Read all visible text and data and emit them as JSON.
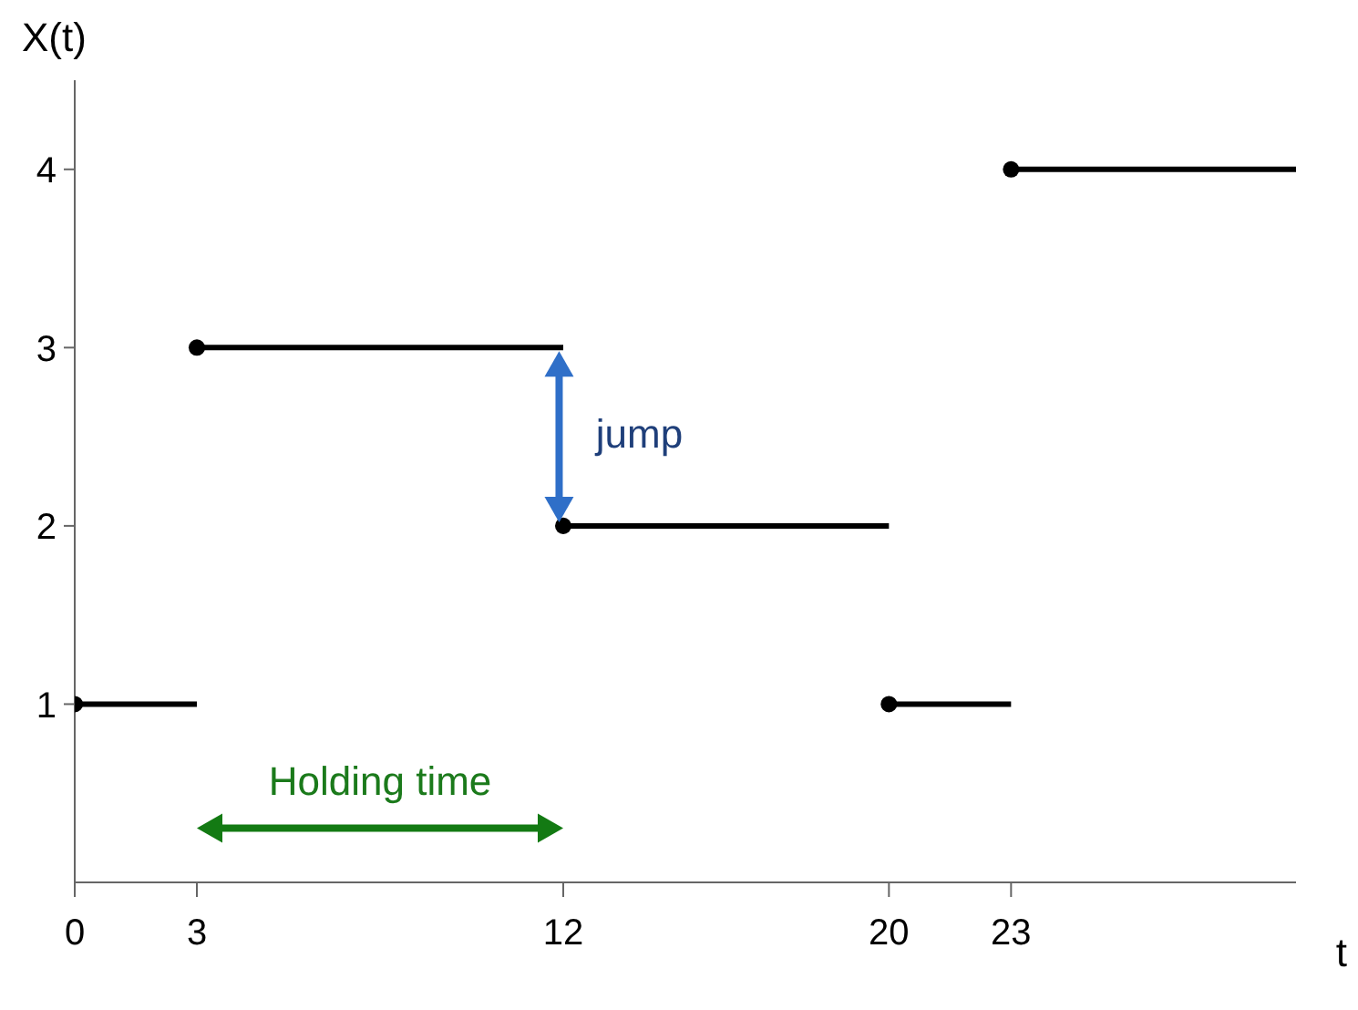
{
  "chart_data": {
    "type": "line",
    "xlabel": "t",
    "ylabel": "X(t)",
    "xlim": [
      0,
      30
    ],
    "xticks": [
      0,
      3,
      12,
      20,
      23
    ],
    "ylim": [
      0,
      4.5
    ],
    "yticks": [
      1,
      2,
      3,
      4
    ],
    "grid": false,
    "legend": false,
    "series": [
      {
        "color": "#000000",
        "marker": "none",
        "x": [
          0,
          3
        ],
        "values": [
          1,
          1
        ]
      },
      {
        "color": "#000000",
        "marker": "none",
        "x": [
          3,
          12
        ],
        "values": [
          3,
          3
        ]
      },
      {
        "color": "#000000",
        "marker": "none",
        "x": [
          12,
          20
        ],
        "values": [
          2,
          2
        ]
      },
      {
        "color": "#000000",
        "marker": "none",
        "x": [
          20,
          23
        ],
        "values": [
          1,
          1
        ]
      },
      {
        "color": "#000000",
        "marker": "none",
        "x": [
          23,
          30
        ],
        "values": [
          4,
          4
        ]
      },
      {
        "type": "scatter",
        "color": "#000000",
        "marker": "circle",
        "x": [
          0,
          3,
          12,
          20,
          23
        ],
        "values": [
          1,
          3,
          2,
          1,
          4
        ]
      }
    ],
    "annotations": [
      "jump",
      "Holding time"
    ]
  }
}
